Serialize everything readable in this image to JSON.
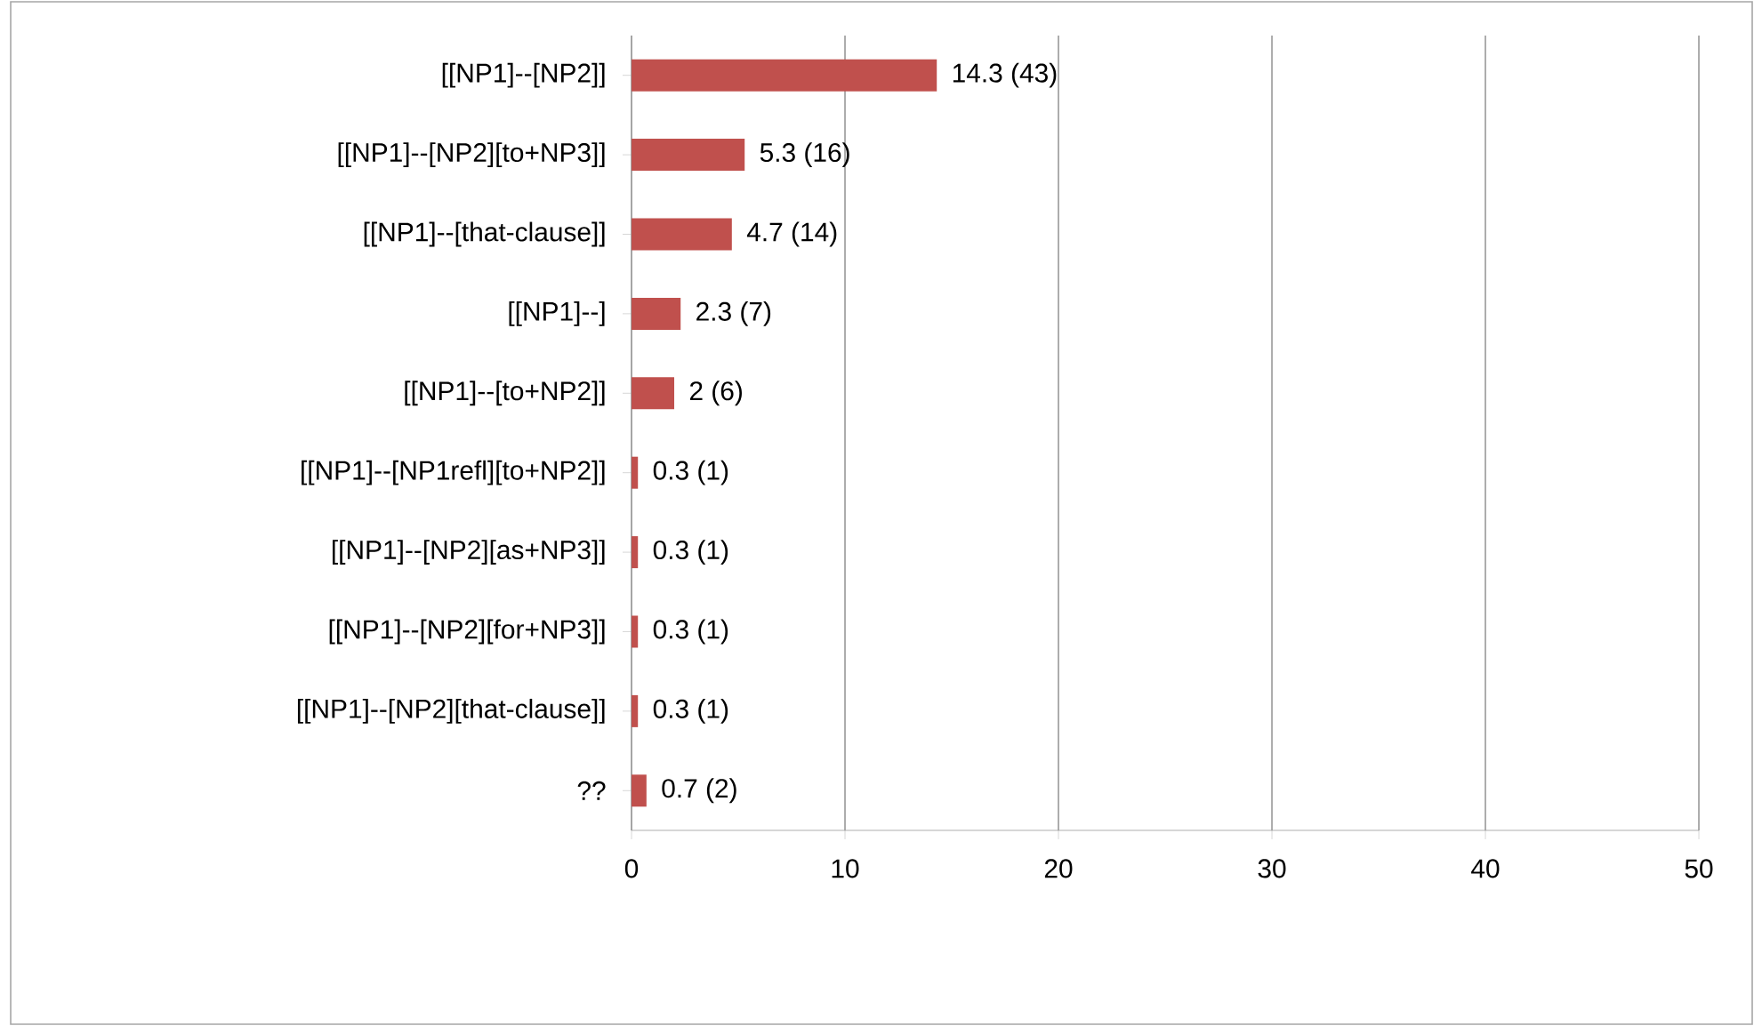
{
  "chart_data": {
    "type": "bar",
    "orientation": "horizontal",
    "categories": [
      "[[NP1]--[NP2]]",
      "[[NP1]--[NP2][to+NP3]]",
      "[[NP1]--[that-clause]]",
      "[[NP1]--]",
      "[[NP1]--[to+NP2]]",
      "[[NP1]--[NP1refl][to+NP2]]",
      "[[NP1]--[NP2][as+NP3]]",
      "[[NP1]--[NP2][for+NP3]]",
      "[[NP1]--[NP2][that-clause]]",
      "??"
    ],
    "values": [
      14.3,
      5.3,
      4.7,
      2.3,
      2,
      0.3,
      0.3,
      0.3,
      0.3,
      0.7
    ],
    "value_labels": [
      "14.3 (43)",
      "5.3 (16)",
      "4.7 (14)",
      "2.3 (7)",
      "2 (6)",
      "0.3 (1)",
      "0.3 (1)",
      "0.3 (1)",
      "0.3 (1)",
      "0.7 (2)"
    ],
    "color": "#c0504d",
    "xlim": [
      0,
      50
    ],
    "xticks": [
      0,
      10,
      20,
      30,
      40,
      50
    ],
    "grid": "x"
  }
}
